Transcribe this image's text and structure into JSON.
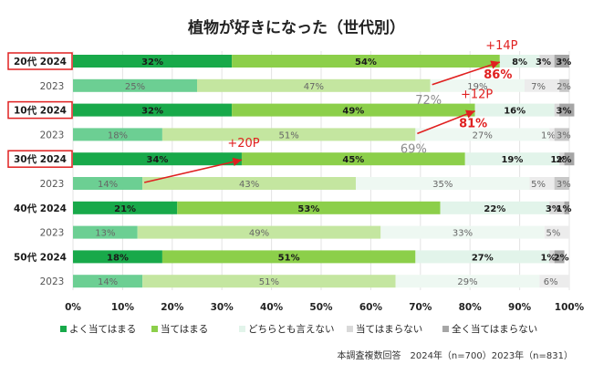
{
  "chart_data": {
    "type": "bar",
    "stacked": true,
    "orientation": "horizontal",
    "title": "植物が好きになった（世代別）",
    "categories": [
      "20代 2024",
      "2023",
      "10代 2024",
      "2023",
      "30代 2024",
      "2023",
      "40代 2024",
      "2023",
      "50代 2024",
      "2023"
    ],
    "highlighted_categories": [
      0,
      2,
      4
    ],
    "bold_categories": [
      0,
      2,
      4,
      6,
      8
    ],
    "series": [
      {
        "name": "よく当てはまる",
        "color_2024": "#18a94a",
        "color_2023": "#6ccf93",
        "values": [
          32,
          25,
          32,
          18,
          34,
          14,
          21,
          13,
          18,
          14
        ],
        "labels": [
          "32%",
          "25%",
          "32%",
          "18%",
          "34%",
          "14%",
          "21%",
          "13%",
          "18%",
          "14%"
        ]
      },
      {
        "name": "当てはまる",
        "color_2024": "#8ccf4a",
        "color_2023": "#c4e6a0",
        "values": [
          54,
          47,
          49,
          51,
          45,
          43,
          53,
          49,
          51,
          51
        ],
        "labels": [
          "54%",
          "47%",
          "49%",
          "51%",
          "45%",
          "43%",
          "53%",
          "49%",
          "51%",
          "51%"
        ]
      },
      {
        "name": "どちらとも言えない",
        "color_2024": "#e2f4ea",
        "color_2023": "#eef8f2",
        "values": [
          8,
          19,
          16,
          27,
          19,
          35,
          22,
          33,
          27,
          29
        ],
        "labels": [
          "8%",
          "19%",
          "16%",
          "27%",
          "19%",
          "35%",
          "22%",
          "33%",
          "27%",
          "29%"
        ]
      },
      {
        "name": "当てはまらない",
        "color_2024": "#d9d9d9",
        "color_2023": "#ececec",
        "values": [
          3,
          7,
          1,
          1,
          1,
          5,
          3,
          5,
          1,
          6
        ],
        "labels": [
          "3%",
          "7%",
          "",
          "1%",
          "1%",
          "5%",
          "3%",
          "5%",
          "1%",
          "6%"
        ]
      },
      {
        "name": "全く当てはまらない",
        "color_2024": "#a6a6a6",
        "color_2023": "#c8c8c8",
        "values": [
          3,
          2,
          3,
          3,
          2,
          3,
          1,
          0,
          2,
          0
        ],
        "labels": [
          "3%",
          "2%",
          "3%",
          "3%",
          "2%",
          "3%",
          "1%",
          "",
          "2%",
          ""
        ]
      }
    ],
    "xlim": [
      0,
      100
    ],
    "x_ticks": [
      "0%",
      "10%",
      "20%",
      "30%",
      "40%",
      "50%",
      "60%",
      "70%",
      "80%",
      "90%",
      "100%"
    ],
    "legend_position": "bottom",
    "annotations": [
      {
        "text": "+14P",
        "color": "#e02020",
        "from_row": 1,
        "from_value": 72,
        "to_row": 0,
        "to_value": 86
      },
      {
        "text": "86%",
        "color": "#e02020",
        "row": 0,
        "value": 86
      },
      {
        "text": "72%",
        "color": "#8c8c8c",
        "row": 1,
        "value": 72
      },
      {
        "text": "+12P",
        "color": "#e02020",
        "from_row": 3,
        "from_value": 69,
        "to_row": 2,
        "to_value": 81
      },
      {
        "text": "81%",
        "color": "#e02020",
        "row": 2,
        "value": 81
      },
      {
        "text": "69%",
        "color": "#8c8c8c",
        "row": 3,
        "value": 69
      },
      {
        "text": "+20P",
        "color": "#e02020",
        "from_row": 5,
        "from_value": 14,
        "to_row": 4,
        "to_value": 34
      }
    ],
    "footnote": "本調査複数回答　2024年（n=700）2023年（n=831）",
    "accent_color": "#e02020"
  }
}
